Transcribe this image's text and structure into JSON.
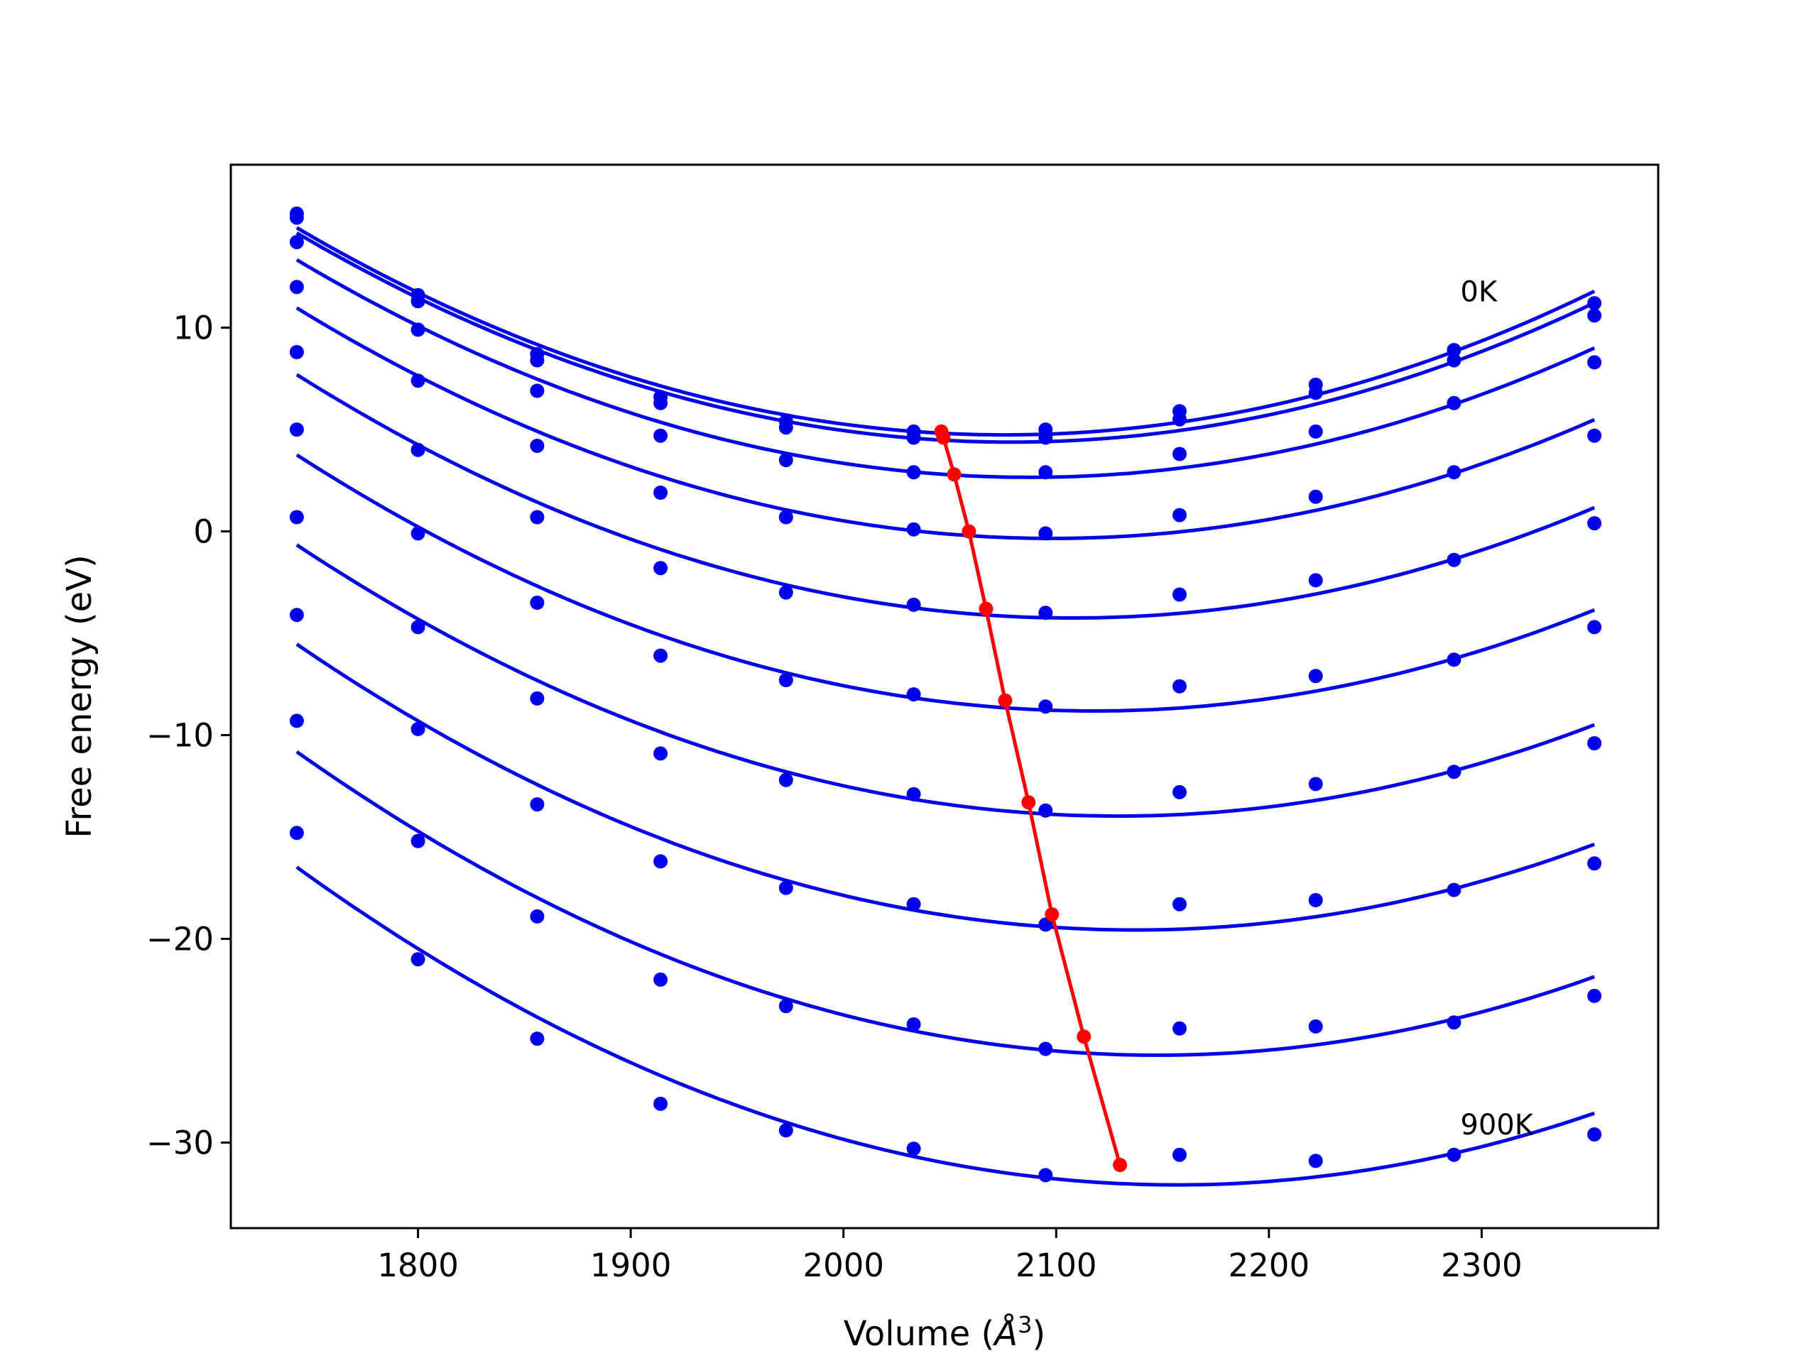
{
  "chart_data": {
    "type": "line",
    "title": "",
    "xlabel_main": "Volume (",
    "xlabel_unit": "Å",
    "xlabel_sup": "3",
    "xlabel_close": ")",
    "ylabel": "Free energy (eV)",
    "xlim": [
      1712,
      2383
    ],
    "ylim": [
      -34.2,
      18.0
    ],
    "xticks": [
      1800,
      1900,
      2000,
      2100,
      2200,
      2300
    ],
    "xtick_labels": [
      "1800",
      "1900",
      "2000",
      "2100",
      "2200",
      "2300"
    ],
    "yticks": [
      10,
      0,
      -10,
      -20,
      -30
    ],
    "ytick_labels": [
      "10",
      "0",
      "−10",
      "−20",
      "−30"
    ],
    "grid": false,
    "legend": "none",
    "annotations": [
      {
        "text": "0K",
        "x": 2290,
        "y": 11.3
      },
      {
        "text": "900K",
        "x": 2290,
        "y": -29.6
      }
    ],
    "x": [
      1743,
      1800,
      1856,
      1914,
      1973,
      2033,
      2095,
      2158,
      2222,
      2287,
      2353
    ],
    "series": [
      {
        "color": "#0000ee",
        "points": [
          15.6,
          11.6,
          8.7,
          6.6,
          5.4,
          4.9,
          5.0,
          5.9,
          7.2,
          8.9,
          11.2
        ]
      },
      {
        "color": "#0000ee",
        "points": [
          15.4,
          11.3,
          8.4,
          6.3,
          5.1,
          4.6,
          4.6,
          5.5,
          6.8,
          8.4,
          10.6
        ]
      },
      {
        "color": "#0000ee",
        "points": [
          14.2,
          9.9,
          6.9,
          4.7,
          3.5,
          2.9,
          2.9,
          3.8,
          4.9,
          6.3,
          8.3
        ]
      },
      {
        "color": "#0000ee",
        "points": [
          12.0,
          7.4,
          4.2,
          1.9,
          0.7,
          0.1,
          -0.1,
          0.8,
          1.7,
          2.9,
          4.7
        ]
      },
      {
        "color": "#0000ee",
        "points": [
          8.8,
          4.0,
          0.7,
          -1.8,
          -3.0,
          -3.6,
          -4.0,
          -3.1,
          -2.4,
          -1.4,
          0.4
        ]
      },
      {
        "color": "#0000ee",
        "points": [
          5.0,
          -0.1,
          -3.5,
          -6.1,
          -7.3,
          -8.0,
          -8.6,
          -7.6,
          -7.1,
          -6.3,
          -4.7
        ]
      },
      {
        "color": "#0000ee",
        "points": [
          0.7,
          -4.7,
          -8.2,
          -10.9,
          -12.2,
          -12.9,
          -13.7,
          -12.8,
          -12.4,
          -11.8,
          -10.4
        ]
      },
      {
        "color": "#0000ee",
        "points": [
          -4.1,
          -9.7,
          -13.4,
          -16.2,
          -17.5,
          -18.3,
          -19.3,
          -18.3,
          -18.1,
          -17.6,
          -16.3
        ]
      },
      {
        "color": "#0000ee",
        "points": [
          -9.3,
          -15.2,
          -18.9,
          -22.0,
          -23.3,
          -24.2,
          -25.4,
          -24.4,
          -24.3,
          -24.1,
          -22.8
        ]
      },
      {
        "color": "#0000ee",
        "points": [
          -14.8,
          -21.0,
          -24.9,
          -28.1,
          -29.4,
          -30.3,
          -31.6,
          -30.6,
          -30.9,
          -30.6,
          -29.6
        ]
      }
    ],
    "minima": {
      "color": "#ff0000",
      "x": [
        2046,
        2047,
        2052,
        2059,
        2067,
        2076,
        2087,
        2098,
        2113,
        2130
      ],
      "y": [
        4.9,
        4.6,
        2.8,
        0.0,
        -3.8,
        -8.3,
        -13.3,
        -18.8,
        -24.8,
        -31.1
      ]
    }
  }
}
